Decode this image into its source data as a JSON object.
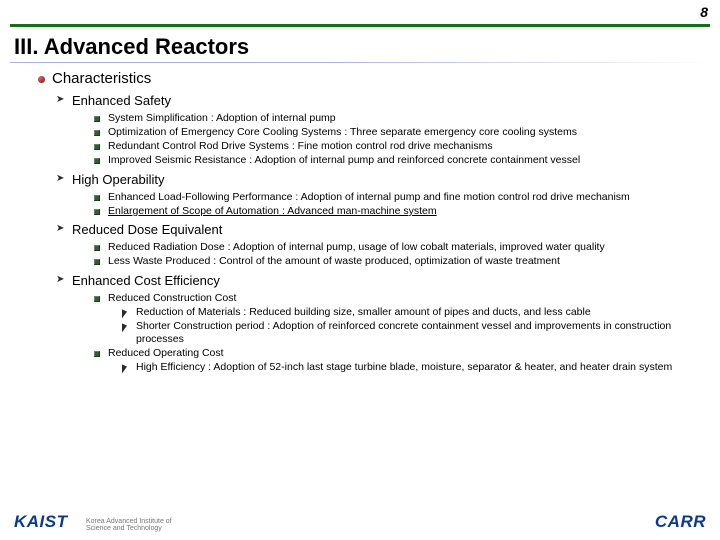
{
  "page_number": "8",
  "title": "III. Advanced Reactors",
  "colors": {
    "accent_rule": "#1a6b1a",
    "brand": "#0a3a8a",
    "text": "#000000",
    "bg": "#ffffff"
  },
  "typography": {
    "title_fontsize_pt": 22,
    "lvl1_fontsize_pt": 15,
    "lvl2_fontsize_pt": 13,
    "lvl3_fontsize_pt": 10.5,
    "lvl4_fontsize_pt": 10.5,
    "font_family": "Arial"
  },
  "lvl1_heading": "Characteristics",
  "sections": [
    {
      "title": "Enhanced Safety",
      "items": [
        "System Simplification : Adoption of internal pump",
        "Optimization of Emergency Core Cooling Systems : Three separate emergency core cooling systems",
        "Redundant Control Rod Drive Systems : Fine motion control rod drive mechanisms",
        "Improved Seismic Resistance : Adoption of internal pump and reinforced concrete containment vessel"
      ]
    },
    {
      "title": "High Operability",
      "items": [
        "Enhanced Load-Following Performance : Adoption of internal pump and fine motion control rod drive mechanism",
        {
          "text": "Enlargement of Scope of Automation : Advanced man-machine system",
          "underline": true
        }
      ]
    },
    {
      "title": "Reduced Dose Equivalent",
      "items": [
        "Reduced Radiation Dose : Adoption of internal pump, usage of low cobalt materials, improved water quality",
        "Less Waste Produced : Control of the amount of waste produced, optimization of waste treatment"
      ]
    },
    {
      "title": "Enhanced Cost Efficiency",
      "items": [
        {
          "text": "Reduced Construction Cost",
          "sub": [
            "Reduction of Materials : Reduced building size, smaller amount of pipes and ducts, and less cable",
            "Shorter Construction period : Adoption of reinforced concrete containment vessel and improvements in construction processes"
          ]
        },
        {
          "text": "Reduced Operating Cost",
          "sub": [
            "High Efficiency : Adoption of 52-inch last stage turbine blade, moisture, separator & heater, and heater drain system"
          ]
        }
      ]
    }
  ],
  "footer": {
    "left_logo": "KAIST",
    "left_sub_line1": "Korea Advanced Institute of",
    "left_sub_line2": "Science and Technology",
    "right_logo": "CARR"
  }
}
